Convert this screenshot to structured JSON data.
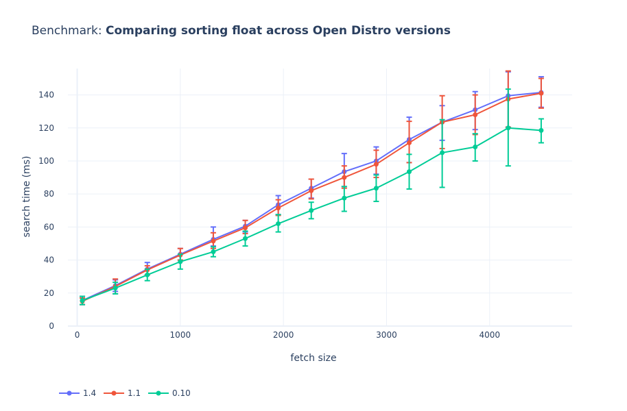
{
  "chart_data": {
    "type": "line",
    "title_prefix": "Benchmark: ",
    "title_main": "Comparing sorting float across Open Distro versions",
    "xlabel": "fetch size",
    "ylabel": "search time (ms)",
    "xlim": [
      -90,
      4800
    ],
    "ylim": [
      0,
      156
    ],
    "x_ticks": [
      0,
      1000,
      2000,
      3000,
      4000
    ],
    "y_ticks": [
      0,
      20,
      40,
      60,
      80,
      100,
      120,
      140
    ],
    "grid": true,
    "legend_position": "bottom-left",
    "x": [
      50,
      370,
      680,
      1000,
      1320,
      1630,
      1950,
      2270,
      2590,
      2900,
      3220,
      3540,
      3860,
      4180,
      4500
    ],
    "series": [
      {
        "name": "1.4",
        "color": "#636efa",
        "values": [
          15.5,
          24.5,
          34.5,
          43.5,
          52.5,
          60.5,
          73.5,
          83.5,
          93.5,
          100,
          113,
          123.5,
          131,
          139.5,
          141.5
        ],
        "err_low": [
          2.5,
          3.5,
          3.5,
          3.5,
          4,
          3.5,
          6,
          6,
          9,
          8,
          14,
          11,
          12,
          19,
          9
        ],
        "err_high": [
          2.5,
          3.5,
          4,
          3.5,
          7.5,
          3.5,
          5.5,
          5.5,
          11,
          8.5,
          13.5,
          10,
          11,
          14.5,
          9.5
        ]
      },
      {
        "name": "1.1",
        "color": "#ef553b",
        "values": [
          15,
          24,
          34,
          43,
          51.5,
          59.5,
          71.5,
          82,
          90,
          98,
          111,
          123.5,
          128,
          137.5,
          141
        ],
        "err_low": [
          2,
          4.5,
          3,
          3,
          4.5,
          3.5,
          4.5,
          5,
          6.5,
          8,
          12,
          16,
          12,
          17,
          9
        ],
        "err_high": [
          2,
          4.5,
          2.5,
          4,
          5,
          4.5,
          5,
          7,
          7,
          8.5,
          13,
          16,
          12,
          17,
          9
        ]
      },
      {
        "name": "0.10",
        "color": "#00cc96",
        "values": [
          15.5,
          23,
          31,
          39,
          45,
          53,
          62,
          70,
          77.5,
          83.5,
          93.5,
          105,
          108.5,
          120,
          118.5
        ],
        "err_low": [
          2.5,
          3.5,
          3.5,
          4.5,
          3,
          4.5,
          5,
          5,
          8,
          8,
          10.5,
          21,
          8.5,
          23,
          7.5
        ],
        "err_high": [
          2.5,
          3.5,
          3.5,
          4.5,
          3,
          4.5,
          5.5,
          5,
          7,
          8,
          10.5,
          20,
          8,
          23.5,
          7
        ]
      }
    ]
  }
}
